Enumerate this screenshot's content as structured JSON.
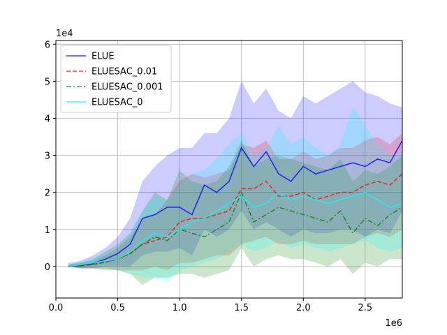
{
  "chart_data": {
    "type": "line",
    "title": "",
    "xlabel": "",
    "ylabel": "",
    "x_offset_label": "1e6",
    "y_offset_label": "1e4",
    "xlim": [
      0,
      2.8
    ],
    "ylim": [
      -0.85,
      6.1
    ],
    "xticks": [
      0.0,
      0.5,
      1.0,
      1.5,
      2.0,
      2.5
    ],
    "xtick_labels": [
      "0.0",
      "0.5",
      "1.0",
      "1.5",
      "2.0",
      "2.5"
    ],
    "yticks": [
      0,
      1,
      2,
      3,
      4,
      5,
      6
    ],
    "ytick_labels": [
      "0",
      "1",
      "2",
      "3",
      "4",
      "5",
      "6"
    ],
    "grid": true,
    "legend_position": "upper-left",
    "x": [
      0.1,
      0.2,
      0.3,
      0.4,
      0.5,
      0.6,
      0.7,
      0.8,
      0.9,
      1.0,
      1.1,
      1.2,
      1.3,
      1.4,
      1.5,
      1.6,
      1.7,
      1.8,
      1.9,
      2.0,
      2.1,
      2.2,
      2.3,
      2.4,
      2.5,
      2.6,
      2.7,
      2.8
    ],
    "series": [
      {
        "name": "ELUE",
        "color": "#0000ff",
        "dash": "solid",
        "values": [
          0.0,
          0.03,
          0.08,
          0.2,
          0.35,
          0.6,
          1.3,
          1.4,
          1.6,
          1.6,
          1.4,
          2.2,
          2.0,
          2.3,
          3.2,
          2.7,
          3.1,
          2.5,
          2.3,
          2.7,
          2.5,
          2.6,
          2.7,
          2.8,
          2.7,
          2.9,
          2.8,
          3.4
        ],
        "lower": [
          0.0,
          -0.05,
          -0.05,
          0.0,
          0.0,
          0.0,
          0.3,
          0.4,
          0.4,
          0.5,
          0.3,
          1.0,
          0.8,
          1.0,
          1.5,
          1.0,
          1.2,
          1.0,
          0.8,
          1.0,
          0.9,
          0.9,
          1.0,
          1.0,
          0.8,
          1.0,
          0.9,
          1.5
        ],
        "upper": [
          0.1,
          0.15,
          0.3,
          0.5,
          0.8,
          1.3,
          2.3,
          2.7,
          3.0,
          3.2,
          3.2,
          3.6,
          3.6,
          4.0,
          5.0,
          4.4,
          4.8,
          4.2,
          4.0,
          4.6,
          4.4,
          4.6,
          4.8,
          5.0,
          4.7,
          4.6,
          4.4,
          4.3
        ]
      },
      {
        "name": "ELUESAC_0.01",
        "color": "#ff0000",
        "dash": "dashed",
        "values": [
          0.0,
          0.02,
          0.05,
          0.12,
          0.2,
          0.35,
          0.6,
          0.7,
          0.8,
          1.2,
          1.3,
          1.3,
          1.4,
          1.5,
          2.1,
          2.1,
          2.3,
          1.9,
          1.9,
          2.0,
          1.8,
          1.9,
          2.0,
          2.0,
          2.2,
          2.3,
          2.2,
          2.5
        ],
        "lower": [
          0.0,
          -0.05,
          -0.05,
          -0.05,
          -0.1,
          -0.1,
          -0.1,
          0.0,
          -0.1,
          0.1,
          0.1,
          0.2,
          0.3,
          0.3,
          0.6,
          0.7,
          0.8,
          0.6,
          0.6,
          0.7,
          0.6,
          0.6,
          0.6,
          0.6,
          0.8,
          0.9,
          0.8,
          1.0
        ],
        "upper": [
          0.05,
          0.1,
          0.15,
          0.3,
          0.5,
          0.8,
          1.3,
          1.4,
          1.8,
          2.3,
          2.5,
          2.4,
          2.5,
          2.6,
          3.3,
          3.2,
          3.4,
          2.9,
          2.9,
          3.1,
          2.9,
          3.0,
          3.2,
          3.2,
          3.4,
          3.5,
          3.3,
          3.6
        ]
      },
      {
        "name": "ELUESAC_0.001",
        "color": "#008000",
        "dash": "dashdot",
        "values": [
          0.0,
          0.02,
          0.06,
          0.12,
          0.2,
          0.35,
          0.6,
          0.8,
          0.7,
          1.0,
          0.9,
          0.8,
          1.0,
          1.2,
          2.0,
          1.2,
          1.4,
          1.6,
          1.5,
          1.4,
          1.3,
          1.2,
          1.5,
          0.9,
          1.3,
          1.1,
          1.4,
          1.6
        ],
        "lower": [
          0.0,
          -0.05,
          -0.05,
          -0.1,
          -0.1,
          -0.2,
          -0.5,
          -0.3,
          -0.3,
          -0.2,
          -0.2,
          -0.3,
          -0.2,
          -0.1,
          0.5,
          0.0,
          0.2,
          0.3,
          0.2,
          0.2,
          0.1,
          0.0,
          0.2,
          -0.2,
          0.1,
          0.0,
          0.2,
          0.2
        ],
        "upper": [
          0.05,
          0.1,
          0.2,
          0.4,
          0.6,
          0.9,
          1.5,
          2.0,
          1.8,
          2.6,
          2.3,
          2.2,
          2.3,
          2.7,
          3.4,
          2.7,
          2.9,
          3.0,
          2.9,
          2.8,
          2.7,
          2.6,
          2.9,
          2.3,
          2.6,
          2.5,
          2.7,
          3.0
        ]
      },
      {
        "name": "ELUESAC_0",
        "color": "#00ffff",
        "dash": "solid",
        "values": [
          0.0,
          0.05,
          0.1,
          0.15,
          0.2,
          0.4,
          0.7,
          0.9,
          0.8,
          1.0,
          1.2,
          1.3,
          1.5,
          1.7,
          1.9,
          1.6,
          1.7,
          2.0,
          1.8,
          1.9,
          1.8,
          1.7,
          1.8,
          1.9,
          2.0,
          1.8,
          1.6,
          1.7
        ],
        "lower": [
          0.0,
          -0.05,
          -0.05,
          -0.05,
          -0.1,
          -0.2,
          -0.3,
          -0.3,
          -0.4,
          -0.1,
          0.0,
          0.1,
          0.2,
          0.4,
          0.6,
          0.4,
          0.5,
          0.7,
          0.5,
          0.6,
          0.5,
          0.4,
          0.5,
          0.6,
          0.7,
          0.5,
          0.4,
          0.5
        ],
        "upper": [
          0.05,
          0.15,
          0.25,
          0.35,
          0.5,
          0.9,
          1.5,
          1.9,
          1.8,
          2.2,
          2.5,
          2.6,
          2.9,
          3.3,
          3.6,
          3.0,
          3.2,
          3.8,
          3.3,
          3.5,
          3.2,
          3.0,
          3.3,
          4.3,
          3.8,
          3.3,
          3.0,
          3.1
        ]
      }
    ]
  }
}
